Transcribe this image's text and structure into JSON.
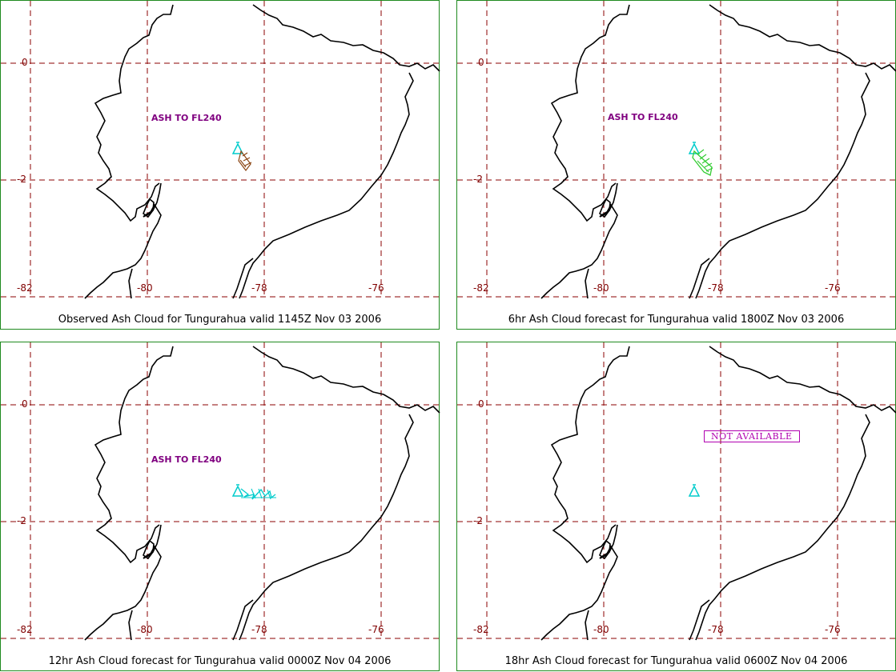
{
  "colors": {
    "panel_border": "#1f8a1f",
    "grid": "#8b0000",
    "coast": "#000000",
    "tick_label": "#800000",
    "flag_text": "#800080",
    "not_available": "#b000b0",
    "observed_ash": "#8b4513",
    "forecast_6hr_ash": "#33cc33",
    "forecast_12hr_ash": "#00cccc",
    "volcano_marker": "#00cccc"
  },
  "grid_labels": {
    "lat": [
      "0",
      "-2"
    ],
    "lon": [
      "-82",
      "-80",
      "-78",
      "-76"
    ]
  },
  "panels": [
    {
      "caption": "Observed Ash Cloud for Tungurahua valid 1145Z Nov 03 2006",
      "flag": "ASH TO FL240",
      "ash": "observed"
    },
    {
      "caption": "6hr Ash Cloud forecast for Tungurahua valid 1800Z Nov 03 2006",
      "flag": "ASH TO FL240",
      "ash": "forecast-6hr"
    },
    {
      "caption": "12hr Ash Cloud forecast for Tungurahua valid 0000Z Nov 04 2006",
      "flag": "ASH TO FL240",
      "ash": "forecast-12hr"
    },
    {
      "caption": "18hr Ash Cloud forecast for Tungurahua valid 0600Z Nov 04 2006",
      "not_available": "NOT AVAILABLE",
      "ash": "none"
    }
  ],
  "icons": [
    "volcano-icon"
  ]
}
